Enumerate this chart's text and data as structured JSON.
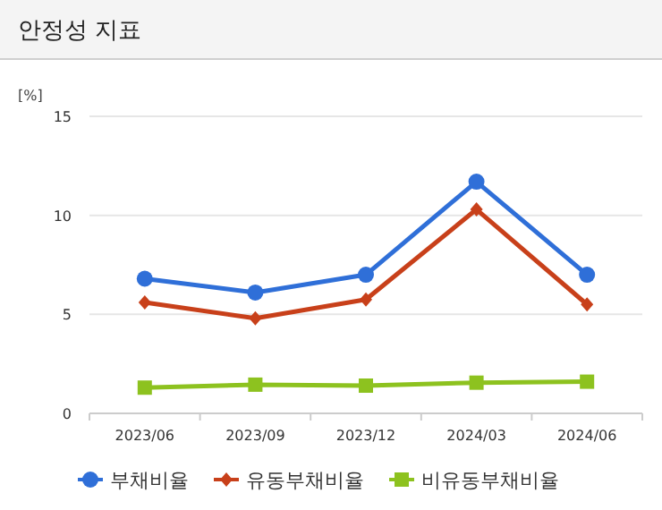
{
  "chart_data": {
    "type": "line",
    "title": "안정성 지표",
    "ylabel": "[%]",
    "categories": [
      "2023/06",
      "2023/09",
      "2023/12",
      "2024/03",
      "2024/06"
    ],
    "series": [
      {
        "name": "부채비율",
        "color": "#2f6fd8",
        "marker": "circle",
        "values": [
          6.8,
          6.1,
          7.0,
          11.7,
          7.0
        ]
      },
      {
        "name": "유동부채비율",
        "color": "#c8401a",
        "marker": "diamond",
        "values": [
          5.6,
          4.8,
          5.75,
          10.3,
          5.5
        ]
      },
      {
        "name": "비유동부채비율",
        "color": "#8dc21f",
        "marker": "square",
        "values": [
          1.3,
          1.45,
          1.4,
          1.55,
          1.6
        ]
      }
    ],
    "ylim": [
      0,
      15
    ],
    "yticks": [
      0,
      5,
      10,
      15
    ],
    "grid": "y",
    "legend": "bottom"
  }
}
